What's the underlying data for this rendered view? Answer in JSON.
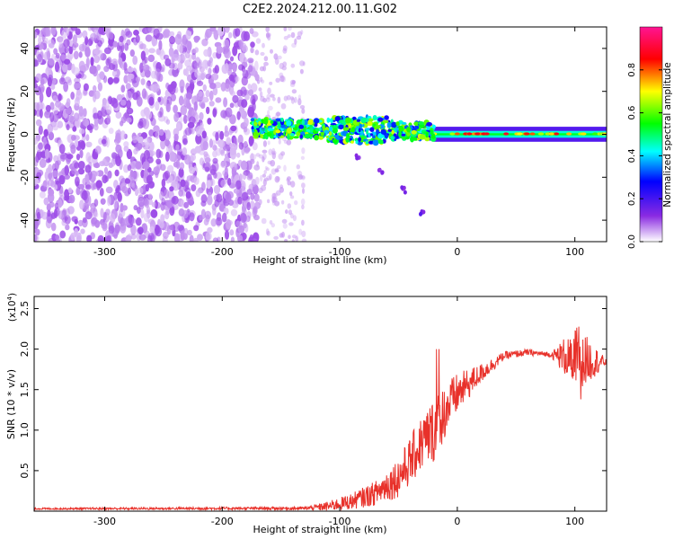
{
  "title": "C2E2.2024.212.00.11.G02",
  "chart_data": [
    {
      "type": "heatmap",
      "panel": "top",
      "xlabel": "Height of straight line (km)",
      "ylabel": "Frequency (Hz)",
      "xlim": [
        -360,
        127
      ],
      "ylim": [
        -50,
        50
      ],
      "xticks": [
        -300,
        -200,
        -100,
        0,
        100
      ],
      "yticks": [
        -40,
        -20,
        0,
        20,
        40
      ],
      "colorbar": {
        "label": "Normalized spectral amplitude",
        "range": [
          0,
          1
        ],
        "ticks": [
          0.0,
          0.2,
          0.4,
          0.6,
          0.8
        ],
        "colormap": [
          "#ffffff",
          "#8a2be2",
          "#0000ff",
          "#00ffff",
          "#00ff00",
          "#ffff00",
          "#ff0000",
          "#ff1493"
        ]
      },
      "regions": [
        {
          "name": "noise",
          "x_range": [
            -360,
            -170
          ],
          "freq_range": [
            -50,
            50
          ],
          "amplitude": 0.1
        },
        {
          "name": "sparse_noise",
          "x_range": [
            -170,
            -130
          ],
          "freq_range": [
            -50,
            50
          ],
          "amplitude": 0.05
        },
        {
          "name": "signal_scattered",
          "x_range": [
            -175,
            -20
          ],
          "center_freq": 3,
          "freq_halfwidth": 5,
          "amplitude": 0.4
        },
        {
          "name": "signal_stable",
          "x_range": [
            -20,
            127
          ],
          "center_freq": 0,
          "freq_halfwidth": 3,
          "amplitude": 0.5
        },
        {
          "name": "streak",
          "points": [
            [
              -85,
              -10
            ],
            [
              -65,
              -17
            ],
            [
              -45,
              -26
            ],
            [
              -30,
              -36
            ]
          ]
        }
      ]
    },
    {
      "type": "line",
      "panel": "bottom",
      "xlabel": "Height of straight line (km)",
      "ylabel": "SNR (10 * v/v)",
      "scale_label": "(x10",
      "scale_exp": "4",
      "scale_close": ")",
      "xlim": [
        -360,
        127
      ],
      "ylim": [
        0,
        2.65
      ],
      "xticks": [
        -300,
        -200,
        -100,
        0,
        100
      ],
      "yticks": [
        0.5,
        1.0,
        1.5,
        2.0,
        2.5
      ],
      "ytick_labels": [
        "0.5",
        "1.0",
        "1.5",
        "2.0",
        "2.5"
      ],
      "color": "#e8312a",
      "envelope": {
        "x": [
          -360,
          -130,
          -110,
          -90,
          -70,
          -50,
          -40,
          -30,
          -20,
          -10,
          0,
          20,
          40,
          60,
          80,
          100,
          110,
          127
        ],
        "mean": [
          0.03,
          0.035,
          0.06,
          0.12,
          0.22,
          0.42,
          0.62,
          0.85,
          1.0,
          1.25,
          1.45,
          1.7,
          1.92,
          1.96,
          1.93,
          1.9,
          1.86,
          1.84
        ],
        "noise": [
          0.01,
          0.02,
          0.06,
          0.1,
          0.15,
          0.25,
          0.3,
          0.35,
          0.4,
          0.35,
          0.25,
          0.12,
          0.05,
          0.04,
          0.03,
          0.4,
          0.3,
          0.03
        ]
      }
    }
  ]
}
